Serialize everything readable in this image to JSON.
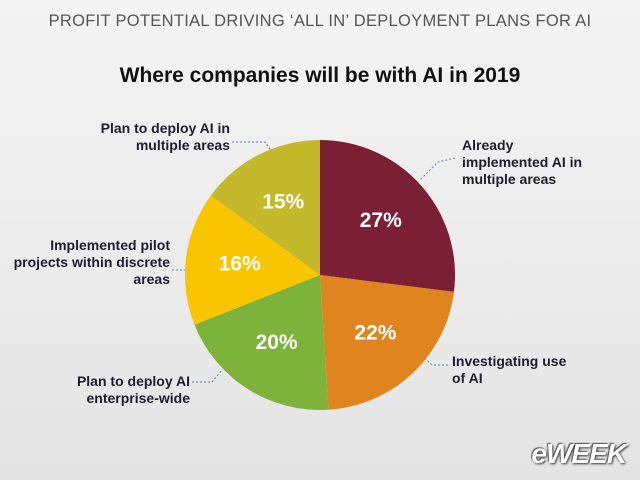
{
  "chart_data": {
    "type": "pie",
    "header": "PROFIT POTENTIAL DRIVING ‘ALL IN’ DEPLOYMENT PLANS FOR AI",
    "title": "Where companies will be with AI in 2019",
    "categories": [
      "Already implemented AI in multiple areas",
      "Investigating use of AI",
      "Plan to deploy AI enterprise-wide",
      "Implemented pilot projects within discrete areas",
      "Plan to deploy AI in multiple areas"
    ],
    "values": [
      27,
      22,
      20,
      16,
      15
    ],
    "value_labels": [
      "27%",
      "22%",
      "20%",
      "16%",
      "15%"
    ],
    "colors": [
      "#7b1f35",
      "#e0841f",
      "#7db33b",
      "#f8c500",
      "#c4b92b"
    ],
    "brand": "eWEEK"
  }
}
